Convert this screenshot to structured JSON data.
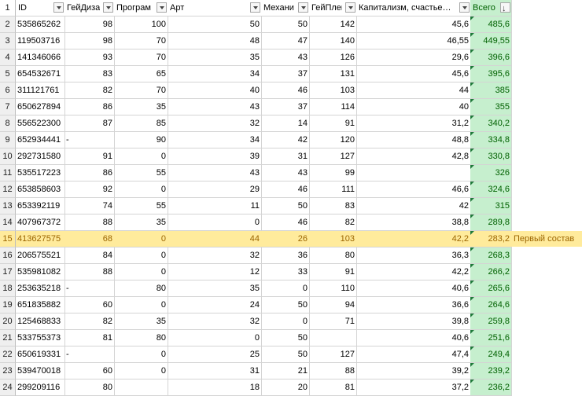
{
  "columns": {
    "row_number": "1",
    "id": "ID",
    "gamedesign": "ГейДиза",
    "programming": "Програм",
    "art": "Арт",
    "mechanics": "Механи",
    "gameplay": "ГейПлей",
    "capitalism": "Капитализм, счастье…",
    "total": "Всего"
  },
  "icons": {
    "filter": "filter-dropdown-icon",
    "sort": "sort-descending-icon",
    "error_marker": "green-triangle-icon"
  },
  "colors": {
    "highlight_fill": "#ffeb9c",
    "highlight_text": "#9c6500",
    "total_fill": "#c6efce",
    "total_text": "#006100"
  },
  "rows": [
    {
      "n": "2",
      "id": "535865262",
      "gd": "98",
      "pr": "100",
      "art": "50",
      "mech": "50",
      "gp": "142",
      "cap": "45,6",
      "total": "485,6",
      "note": ""
    },
    {
      "n": "3",
      "id": "119503716",
      "gd": "98",
      "pr": "70",
      "art": "48",
      "mech": "47",
      "gp": "140",
      "cap": "46,55",
      "total": "449,55",
      "note": ""
    },
    {
      "n": "4",
      "id": "141346066",
      "gd": "93",
      "pr": "70",
      "art": "35",
      "mech": "43",
      "gp": "126",
      "cap": "29,6",
      "total": "396,6",
      "note": ""
    },
    {
      "n": "5",
      "id": "654532671",
      "gd": "83",
      "pr": "65",
      "art": "34",
      "mech": "37",
      "gp": "131",
      "cap": "45,6",
      "total": "395,6",
      "note": ""
    },
    {
      "n": "6",
      "id": "311121761",
      "gd": "82",
      "pr": "70",
      "art": "40",
      "mech": "46",
      "gp": "103",
      "cap": "44",
      "total": "385",
      "note": ""
    },
    {
      "n": "7",
      "id": "650627894",
      "gd": "86",
      "pr": "35",
      "art": "43",
      "mech": "37",
      "gp": "114",
      "cap": "40",
      "total": "355",
      "note": ""
    },
    {
      "n": "8",
      "id": "556522300",
      "gd": "87",
      "pr": "85",
      "art": "32",
      "mech": "14",
      "gp": "91",
      "cap": "31,2",
      "total": "340,2",
      "note": ""
    },
    {
      "n": "9",
      "id": "652934441",
      "gd": "-",
      "pr": "90",
      "art": "34",
      "mech": "42",
      "gp": "120",
      "cap": "48,8",
      "total": "334,8",
      "note": ""
    },
    {
      "n": "10",
      "id": "292731580",
      "gd": "91",
      "pr": "0",
      "art": "39",
      "mech": "31",
      "gp": "127",
      "cap": "42,8",
      "total": "330,8",
      "note": ""
    },
    {
      "n": "11",
      "id": "535517223",
      "gd": "86",
      "pr": "55",
      "art": "43",
      "mech": "43",
      "gp": "99",
      "cap": "",
      "total": "326",
      "note": ""
    },
    {
      "n": "12",
      "id": "653858603",
      "gd": "92",
      "pr": "0",
      "art": "29",
      "mech": "46",
      "gp": "111",
      "cap": "46,6",
      "total": "324,6",
      "note": ""
    },
    {
      "n": "13",
      "id": "653392119",
      "gd": "74",
      "pr": "55",
      "art": "11",
      "mech": "50",
      "gp": "83",
      "cap": "42",
      "total": "315",
      "note": ""
    },
    {
      "n": "14",
      "id": "407967372",
      "gd": "88",
      "pr": "35",
      "art": "0",
      "mech": "46",
      "gp": "82",
      "cap": "38,8",
      "total": "289,8",
      "note": ""
    },
    {
      "n": "15",
      "id": "413627575",
      "gd": "68",
      "pr": "0",
      "art": "44",
      "mech": "26",
      "gp": "103",
      "cap": "42,2",
      "total": "283,2",
      "note": "Первый состав"
    },
    {
      "n": "16",
      "id": "206575521",
      "gd": "84",
      "pr": "0",
      "art": "32",
      "mech": "36",
      "gp": "80",
      "cap": "36,3",
      "total": "268,3",
      "note": ""
    },
    {
      "n": "17",
      "id": "535981082",
      "gd": "88",
      "pr": "0",
      "art": "12",
      "mech": "33",
      "gp": "91",
      "cap": "42,2",
      "total": "266,2",
      "note": ""
    },
    {
      "n": "18",
      "id": "253635218",
      "gd": "-",
      "pr": "80",
      "art": "35",
      "mech": "0",
      "gp": "110",
      "cap": "40,6",
      "total": "265,6",
      "note": ""
    },
    {
      "n": "19",
      "id": "651835882",
      "gd": "60",
      "pr": "0",
      "art": "24",
      "mech": "50",
      "gp": "94",
      "cap": "36,6",
      "total": "264,6",
      "note": ""
    },
    {
      "n": "20",
      "id": "125468833",
      "gd": "82",
      "pr": "35",
      "art": "32",
      "mech": "0",
      "gp": "71",
      "cap": "39,8",
      "total": "259,8",
      "note": ""
    },
    {
      "n": "21",
      "id": "533755373",
      "gd": "81",
      "pr": "80",
      "art": "0",
      "mech": "50",
      "gp": "",
      "cap": "40,6",
      "total": "251,6",
      "note": ""
    },
    {
      "n": "22",
      "id": "650619331",
      "gd": "-",
      "pr": "0",
      "art": "25",
      "mech": "50",
      "gp": "127",
      "cap": "47,4",
      "total": "249,4",
      "note": ""
    },
    {
      "n": "23",
      "id": "539470018",
      "gd": "60",
      "pr": "0",
      "art": "31",
      "mech": "21",
      "gp": "88",
      "cap": "39,2",
      "total": "239,2",
      "note": ""
    },
    {
      "n": "24",
      "id": "299209116",
      "gd": "80",
      "pr": "",
      "art": "18",
      "mech": "20",
      "gp": "81",
      "cap": "37,2",
      "total": "236,2",
      "note": ""
    }
  ]
}
